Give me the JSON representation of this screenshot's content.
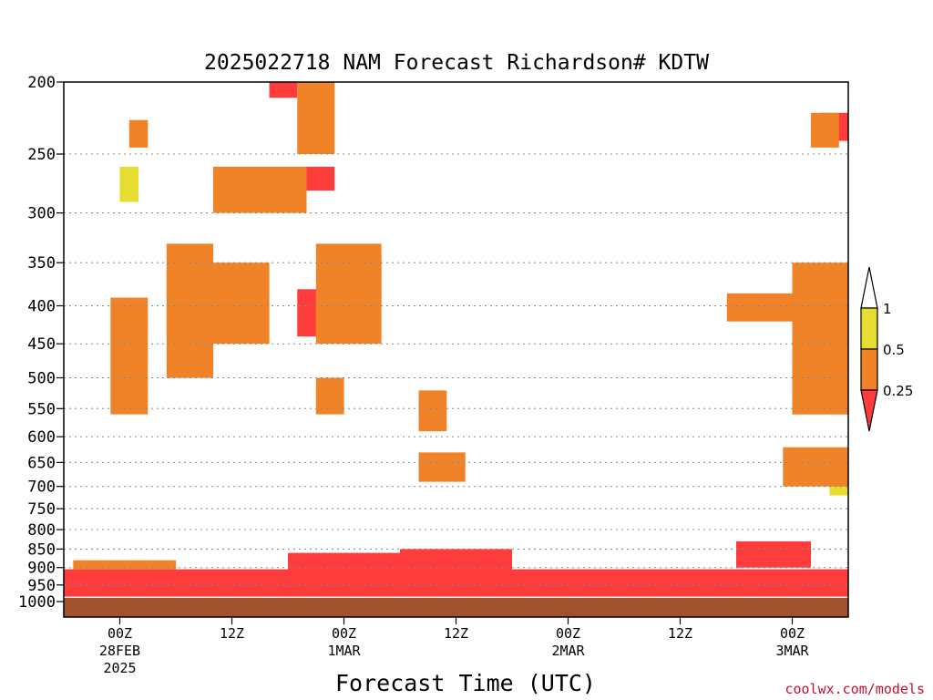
{
  "chart_data": {
    "type": "heatmap",
    "title": "2025022718 NAM Forecast Richardson# KDTW",
    "xlabel": "Forecast Time (UTC)",
    "ylabel": "",
    "credit": "coolwx.com/models",
    "y_scale": "log-pressure",
    "y_ticks": [
      "200",
      "250",
      "300",
      "350",
      "400",
      "450",
      "500",
      "550",
      "600",
      "650",
      "700",
      "750",
      "800",
      "850",
      "900",
      "950",
      "1000"
    ],
    "ylim": [
      1000,
      200
    ],
    "x_ticks": [
      {
        "lines": [
          "00Z",
          "28FEB",
          "2025"
        ],
        "hour": 6
      },
      {
        "lines": [
          "12Z"
        ],
        "hour": 18
      },
      {
        "lines": [
          "00Z",
          "1MAR"
        ],
        "hour": 30
      },
      {
        "lines": [
          "12Z"
        ],
        "hour": 42
      },
      {
        "lines": [
          "00Z",
          "2MAR"
        ],
        "hour": 54
      },
      {
        "lines": [
          "12Z"
        ],
        "hour": 66
      },
      {
        "lines": [
          "00Z",
          "3MAR"
        ],
        "hour": 78
      }
    ],
    "xlim": [
      0,
      84
    ],
    "legend": {
      "placement": "right",
      "labels": [
        "1",
        "0.5",
        "0.25"
      ],
      "bins": [
        {
          "range": "> 1",
          "color": "#ffffff"
        },
        {
          "range": "0.5 - 1",
          "color": "#e6dc32"
        },
        {
          "range": "0.25 - 0.5",
          "color": "#f08228"
        },
        {
          "range": "< 0.25",
          "color": "#ff3c3c"
        }
      ]
    },
    "ground_color": "#a0522d",
    "grid": true,
    "regions": [
      {
        "bin": 2,
        "t0": 0,
        "t1": 84,
        "p0": 905,
        "p1": 985
      },
      {
        "bin": 2,
        "t0": 24,
        "t1": 36,
        "p0": 860,
        "p1": 920
      },
      {
        "bin": 2,
        "t0": 36,
        "t1": 48,
        "p0": 850,
        "p1": 915
      },
      {
        "bin": 2,
        "t0": 72,
        "t1": 80,
        "p0": 830,
        "p1": 900
      },
      {
        "bin": 1,
        "t0": 1,
        "t1": 12,
        "p0": 880,
        "p1": 905
      },
      {
        "bin": 0,
        "t0": 6,
        "t1": 8,
        "p0": 260,
        "p1": 290
      },
      {
        "bin": 1,
        "t0": 7,
        "t1": 9,
        "p0": 225,
        "p1": 245
      },
      {
        "bin": 0,
        "t0": 6,
        "t1": 8,
        "p0": 420,
        "p1": 500
      },
      {
        "bin": 1,
        "t0": 5,
        "t1": 9,
        "p0": 390,
        "p1": 560
      },
      {
        "bin": 0,
        "t0": 11,
        "t1": 14,
        "p0": 360,
        "p1": 440
      },
      {
        "bin": 1,
        "t0": 11,
        "t1": 16,
        "p0": 330,
        "p1": 500
      },
      {
        "bin": 0,
        "t0": 16,
        "t1": 21,
        "p0": 380,
        "p1": 430
      },
      {
        "bin": 1,
        "t0": 15,
        "t1": 22,
        "p0": 350,
        "p1": 450
      },
      {
        "bin": 0,
        "t0": 22,
        "t1": 25,
        "p0": 260,
        "p1": 290
      },
      {
        "bin": 1,
        "t0": 16,
        "t1": 26,
        "p0": 260,
        "p1": 300
      },
      {
        "bin": 2,
        "t0": 26,
        "t1": 29,
        "p0": 260,
        "p1": 280
      },
      {
        "bin": 2,
        "t0": 22,
        "t1": 25,
        "p0": 200,
        "p1": 210
      },
      {
        "bin": 0,
        "t0": 26,
        "t1": 27,
        "p0": 220,
        "p1": 235
      },
      {
        "bin": 1,
        "t0": 25,
        "t1": 29,
        "p0": 200,
        "p1": 250
      },
      {
        "bin": 2,
        "t0": 25,
        "t1": 30,
        "p0": 380,
        "p1": 440
      },
      {
        "bin": 2,
        "t0": 29,
        "t1": 34,
        "p0": 340,
        "p1": 400
      },
      {
        "bin": 1,
        "t0": 27,
        "t1": 34,
        "p0": 330,
        "p1": 450
      },
      {
        "bin": 0,
        "t0": 27,
        "t1": 29,
        "p0": 510,
        "p1": 540
      },
      {
        "bin": 1,
        "t0": 27,
        "t1": 30,
        "p0": 500,
        "p1": 560
      },
      {
        "bin": 1,
        "t0": 38,
        "t1": 41,
        "p0": 520,
        "p1": 590
      },
      {
        "bin": 1,
        "t0": 38,
        "t1": 43,
        "p0": 630,
        "p1": 690
      },
      {
        "bin": 1,
        "t0": 71,
        "t1": 78,
        "p0": 385,
        "p1": 420
      },
      {
        "bin": 2,
        "t0": 79,
        "t1": 83,
        "p0": 400,
        "p1": 480
      },
      {
        "bin": 1,
        "t0": 78,
        "t1": 84,
        "p0": 350,
        "p1": 560
      },
      {
        "bin": 2,
        "t0": 81,
        "t1": 84,
        "p0": 220,
        "p1": 240
      },
      {
        "bin": 1,
        "t0": 80,
        "t1": 83,
        "p0": 220,
        "p1": 245
      },
      {
        "bin": 0,
        "t0": 82,
        "t1": 84,
        "p0": 680,
        "p1": 720
      },
      {
        "bin": 1,
        "t0": 77,
        "t1": 84,
        "p0": 620,
        "p1": 700
      }
    ]
  }
}
